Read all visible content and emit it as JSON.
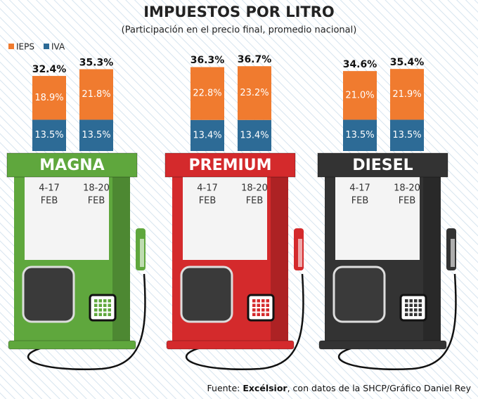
{
  "chart_data": {
    "type": "stacked_bar",
    "title": "IMPUESTOS POR LITRO",
    "subtitle": "(Participación en el precio final, promedio nacional)",
    "series": [
      {
        "name": "IEPS",
        "color": "#f07b2f",
        "values": [
          18.9,
          21.8,
          22.8,
          23.2,
          21.0,
          21.9
        ],
        "value_labels": [
          "18.9%",
          "21.8%",
          "22.8%",
          "23.2%",
          "21.0%",
          "21.9%"
        ]
      },
      {
        "name": "IVA",
        "color": "#2d6b96",
        "values": [
          13.5,
          13.5,
          13.4,
          13.4,
          13.5,
          13.5
        ],
        "value_labels": [
          "13.5%",
          "13.5%",
          "13.4%",
          "13.4%",
          "13.5%",
          "13.5%"
        ]
      }
    ],
    "totals": [
      32.4,
      35.3,
      36.3,
      36.7,
      34.6,
      35.4
    ],
    "total_labels": [
      "32.4%",
      "35.3%",
      "36.3%",
      "36.7%",
      "34.6%",
      "35.4%"
    ],
    "groups": [
      {
        "name": "MAGNA",
        "color": "#5fa73d",
        "categories": [
          {
            "days": "4-17",
            "month": "FEB"
          },
          {
            "days": "18-20",
            "month": "FEB"
          }
        ]
      },
      {
        "name": "PREMIUM",
        "color": "#d42a2c",
        "categories": [
          {
            "days": "4-17",
            "month": "FEB"
          },
          {
            "days": "18-20",
            "month": "FEB"
          }
        ]
      },
      {
        "name": "DIESEL",
        "color": "#333333",
        "categories": [
          {
            "days": "4-17",
            "month": "FEB"
          },
          {
            "days": "18-20",
            "month": "FEB"
          }
        ]
      }
    ],
    "source": {
      "prefix": "Fuente: ",
      "brand": "Excélsior",
      "rest": ", con datos de la SHCP/Gráfico Daniel Rey"
    }
  }
}
